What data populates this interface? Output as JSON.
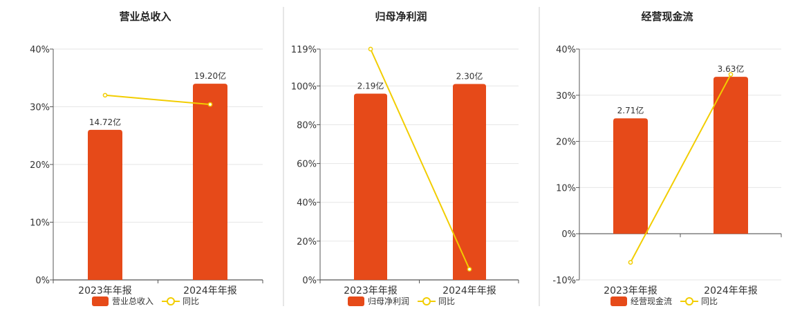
{
  "colors": {
    "bar": "#E64A19",
    "line": "#F2CD00",
    "grid": "#E6E6E6",
    "axis": "#555555",
    "divider": "#CCCCCC"
  },
  "chart_data": [
    {
      "type": "bar",
      "title": "营业总收入",
      "categories": [
        "2023年年报",
        "2024年年报"
      ],
      "bar_labels": [
        "14.72亿",
        "19.20亿"
      ],
      "bar_values_pct": [
        26.0,
        34.0
      ],
      "series": [
        {
          "name": "营业总收入",
          "values": [
            14.72,
            19.2
          ],
          "unit": "亿"
        },
        {
          "name": "同比",
          "values": [
            32.0,
            30.4
          ],
          "unit": "%"
        }
      ],
      "y_ticks": [
        "0%",
        "10%",
        "20%",
        "30%",
        "40%"
      ],
      "ylim": [
        0,
        40
      ],
      "legend": [
        "营业总收入",
        "同比"
      ]
    },
    {
      "type": "bar",
      "title": "归母净利润",
      "categories": [
        "2023年年报",
        "2024年年报"
      ],
      "bar_labels": [
        "2.19亿",
        "2.30亿"
      ],
      "bar_values_pct": [
        96.0,
        101.0
      ],
      "series": [
        {
          "name": "归母净利润",
          "values": [
            2.19,
            2.3
          ],
          "unit": "亿"
        },
        {
          "name": "同比",
          "values": [
            119,
            5.5
          ],
          "unit": "%"
        }
      ],
      "y_ticks": [
        "0%",
        "20%",
        "40%",
        "60%",
        "80%",
        "100%",
        "119%"
      ],
      "y_tick_values": [
        0,
        20,
        40,
        60,
        80,
        100,
        119
      ],
      "ylim": [
        0,
        119
      ],
      "legend": [
        "归母净利润",
        "同比"
      ]
    },
    {
      "type": "bar",
      "title": "经营现金流",
      "categories": [
        "2023年年报",
        "2024年年报"
      ],
      "bar_labels": [
        "2.71亿",
        "3.63亿"
      ],
      "bar_values_pct": [
        25.0,
        34.0
      ],
      "series": [
        {
          "name": "经营现金流",
          "values": [
            2.71,
            3.63
          ],
          "unit": "亿"
        },
        {
          "name": "同比",
          "values": [
            -6.2,
            34.5
          ],
          "unit": "%"
        }
      ],
      "y_ticks": [
        "-10%",
        "0%",
        "10%",
        "20%",
        "30%",
        "40%"
      ],
      "y_tick_values": [
        -10,
        0,
        10,
        20,
        30,
        40
      ],
      "ylim": [
        -10,
        40
      ],
      "legend": [
        "经营现金流",
        "同比"
      ]
    }
  ]
}
